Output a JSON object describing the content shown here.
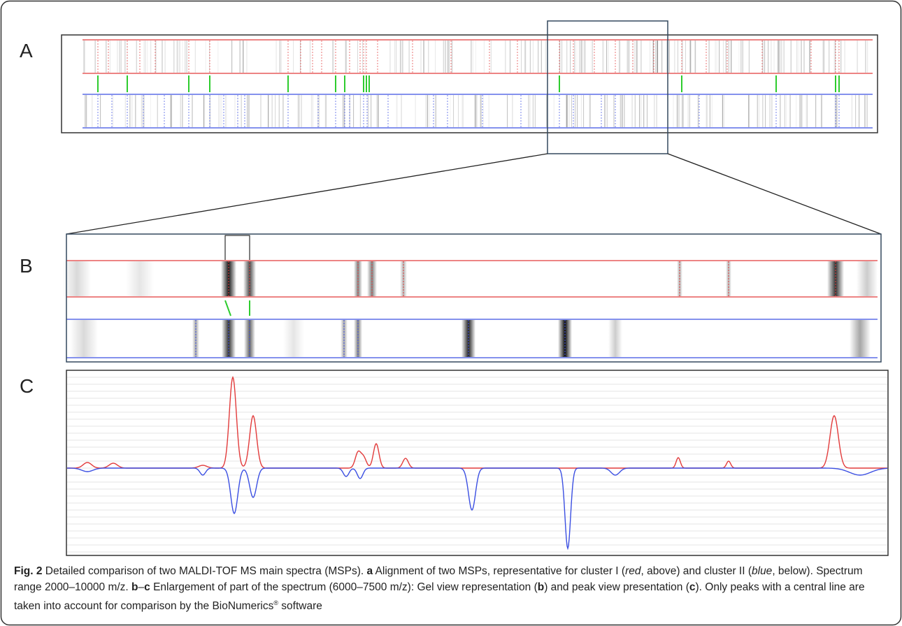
{
  "panels": [
    {
      "label": "A"
    },
    {
      "label": "B"
    },
    {
      "label": "C"
    }
  ],
  "caption": {
    "runs": [
      "Fig. 2",
      " Detailed comparison of two MALDI-TOF MS main spectra (MSPs). ",
      "a",
      " Alignment of two MSPs, representative for cluster I (",
      "red",
      ", above) and cluster II (",
      "blue",
      ", below). Spectrum range 2000–10000 m/z. ",
      "b",
      "–",
      "c",
      " Enlargement of part of the spectrum (6000–7500 m/z): Gel view representation (",
      "b",
      ") and peak view presentation (",
      "c",
      "). Only peaks with a central line are taken into account for comparison by the BioNumerics",
      "®",
      " software"
    ]
  }
}
